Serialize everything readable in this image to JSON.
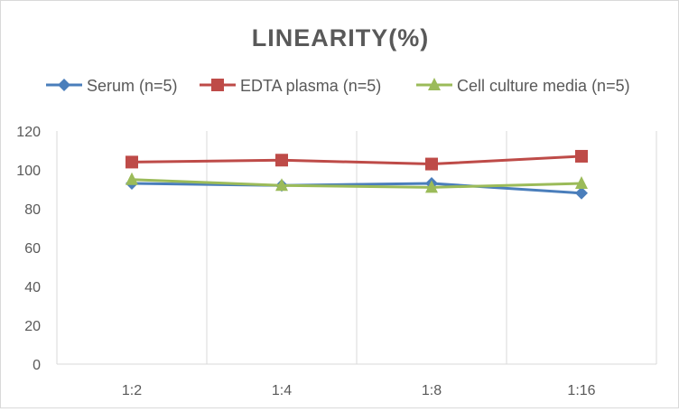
{
  "chart_data": {
    "type": "line",
    "title": "LINEARITY(%)",
    "categories": [
      "1:2",
      "1:4",
      "1:8",
      "1:16"
    ],
    "series": [
      {
        "name": "Serum (n=5)",
        "values": [
          93,
          92,
          93,
          88
        ],
        "color": "#4a7ebb",
        "marker": "diamond"
      },
      {
        "name": "EDTA plasma (n=5)",
        "values": [
          104,
          105,
          103,
          107
        ],
        "color": "#be4b48",
        "marker": "square"
      },
      {
        "name": "Cell culture media (n=5)",
        "values": [
          95,
          92,
          91,
          93
        ],
        "color": "#9bbb59",
        "marker": "triangle"
      }
    ],
    "ylim": [
      0,
      120
    ],
    "yticks": [
      0,
      20,
      40,
      60,
      80,
      100,
      120
    ],
    "grid": "vertical",
    "legend": "top",
    "xlabel": "",
    "ylabel": ""
  }
}
